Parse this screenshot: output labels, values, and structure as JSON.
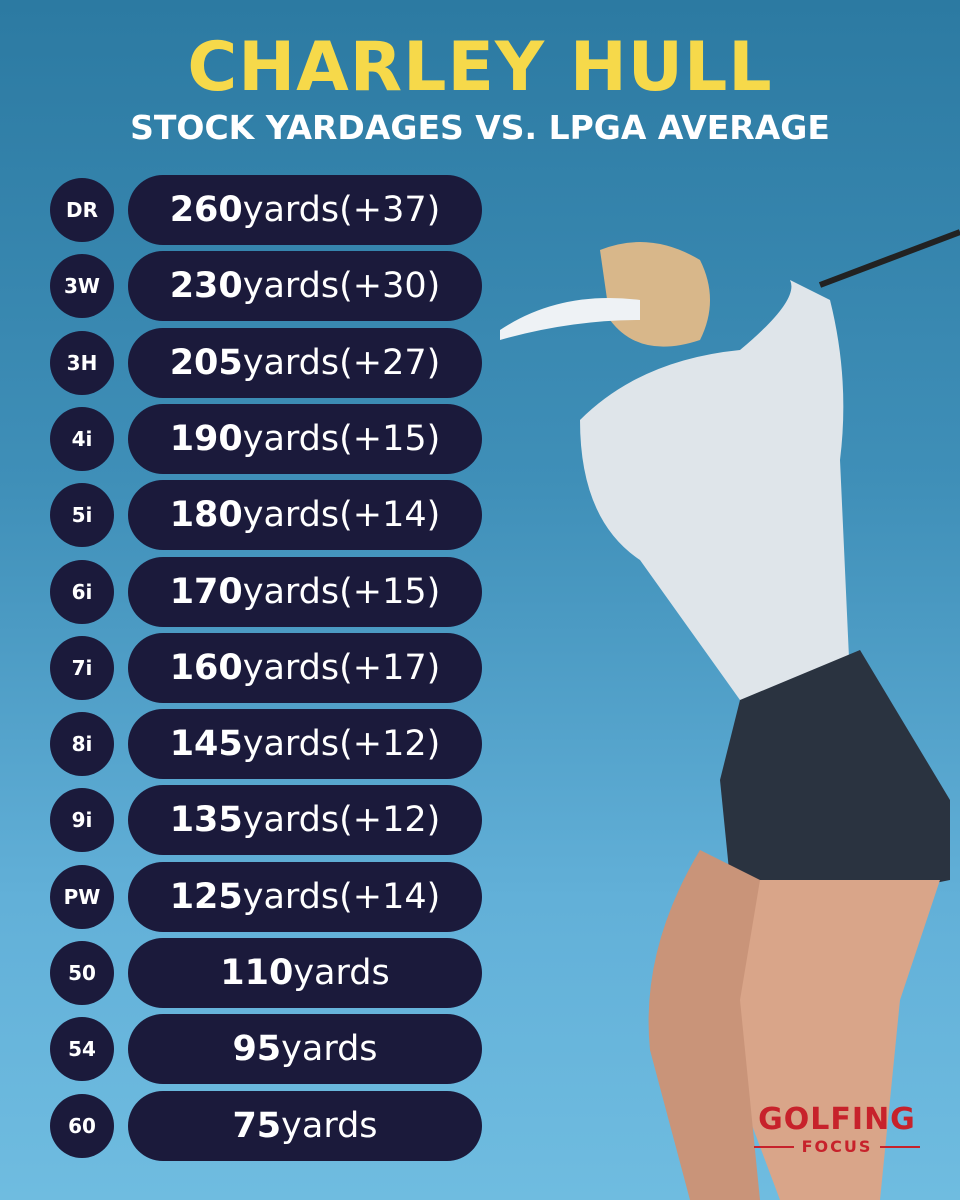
{
  "header": {
    "title": "CHARLEY HULL",
    "subtitle": "STOCK YARDAGES VS. LPGA AVERAGE"
  },
  "rows": [
    {
      "club": "DR",
      "distance": 260,
      "unit": "yards",
      "diff": "(+37)"
    },
    {
      "club": "3W",
      "distance": 230,
      "unit": "yards",
      "diff": "(+30)"
    },
    {
      "club": "3H",
      "distance": 205,
      "unit": "yards",
      "diff": "(+27)"
    },
    {
      "club": "4i",
      "distance": 190,
      "unit": "yards",
      "diff": "(+15)"
    },
    {
      "club": "5i",
      "distance": 180,
      "unit": "yards",
      "diff": "(+14)"
    },
    {
      "club": "6i",
      "distance": 170,
      "unit": "yards",
      "diff": "(+15)"
    },
    {
      "club": "7i",
      "distance": 160,
      "unit": "yards",
      "diff": "(+17)"
    },
    {
      "club": "8i",
      "distance": 145,
      "unit": "yards",
      "diff": "(+12)"
    },
    {
      "club": "9i",
      "distance": 135,
      "unit": "yards",
      "diff": "(+12)"
    },
    {
      "club": "PW",
      "distance": 125,
      "unit": "yards",
      "diff": "(+14)"
    },
    {
      "club": "50",
      "distance": 110,
      "unit": "yards"
    },
    {
      "club": "54",
      "distance": 95,
      "unit": "yards"
    },
    {
      "club": "60",
      "distance": 75,
      "unit": "yards"
    }
  ],
  "logo": {
    "top": "GOLFING",
    "bottom": "FOCUS"
  }
}
